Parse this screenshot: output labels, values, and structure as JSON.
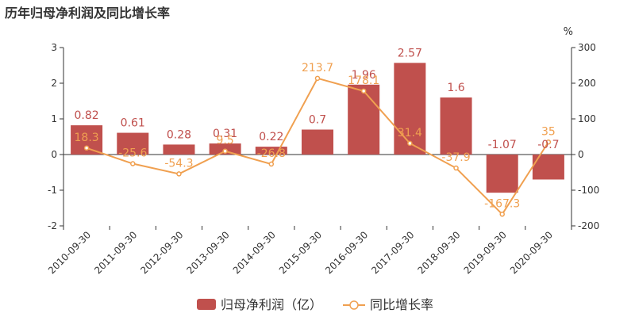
{
  "title": "历年归母净利润及同比增长率",
  "chart_data": {
    "type": "bar",
    "title": "历年归母净利润及同比增长率",
    "categories": [
      "2010-09-30",
      "2011-09-30",
      "2012-09-30",
      "2013-09-30",
      "2014-09-30",
      "2015-09-30",
      "2016-09-30",
      "2017-09-30",
      "2018-09-30",
      "2019-09-30",
      "2020-09-30"
    ],
    "series": [
      {
        "name": "归母净利润（亿）",
        "type": "bar",
        "axis": "left",
        "color": "#c0504d",
        "values": [
          0.82,
          0.61,
          0.28,
          0.31,
          0.22,
          0.7,
          1.96,
          2.57,
          1.6,
          -1.07,
          -0.7
        ],
        "labels": [
          "0.82",
          "0.61",
          "0.28",
          "0.31",
          "0.22",
          "0.7",
          "1.96",
          "2.57",
          "1.6",
          "-1.07",
          "-0.7"
        ]
      },
      {
        "name": "同比增长率",
        "type": "line",
        "axis": "right",
        "color": "#f0a050",
        "values": [
          18.3,
          -25.6,
          -54.3,
          9.5,
          -26.8,
          213.7,
          178.1,
          31.4,
          -37.9,
          -167.3,
          35
        ],
        "labels": [
          "18.3",
          "-25.6",
          "-54.3",
          "9.5",
          "-26.8",
          "213.7",
          "178.1",
          "31.4",
          "-37.9",
          "-167.3",
          "35"
        ]
      }
    ],
    "y_left": {
      "min": -2,
      "max": 3,
      "ticks": [
        3,
        2,
        1,
        0,
        -1,
        -2
      ]
    },
    "y_right": {
      "min": -200,
      "max": 300,
      "ticks": [
        300,
        200,
        100,
        0,
        -100,
        -200
      ],
      "unit": "%"
    },
    "grid": false,
    "legend": "bottom-center"
  }
}
